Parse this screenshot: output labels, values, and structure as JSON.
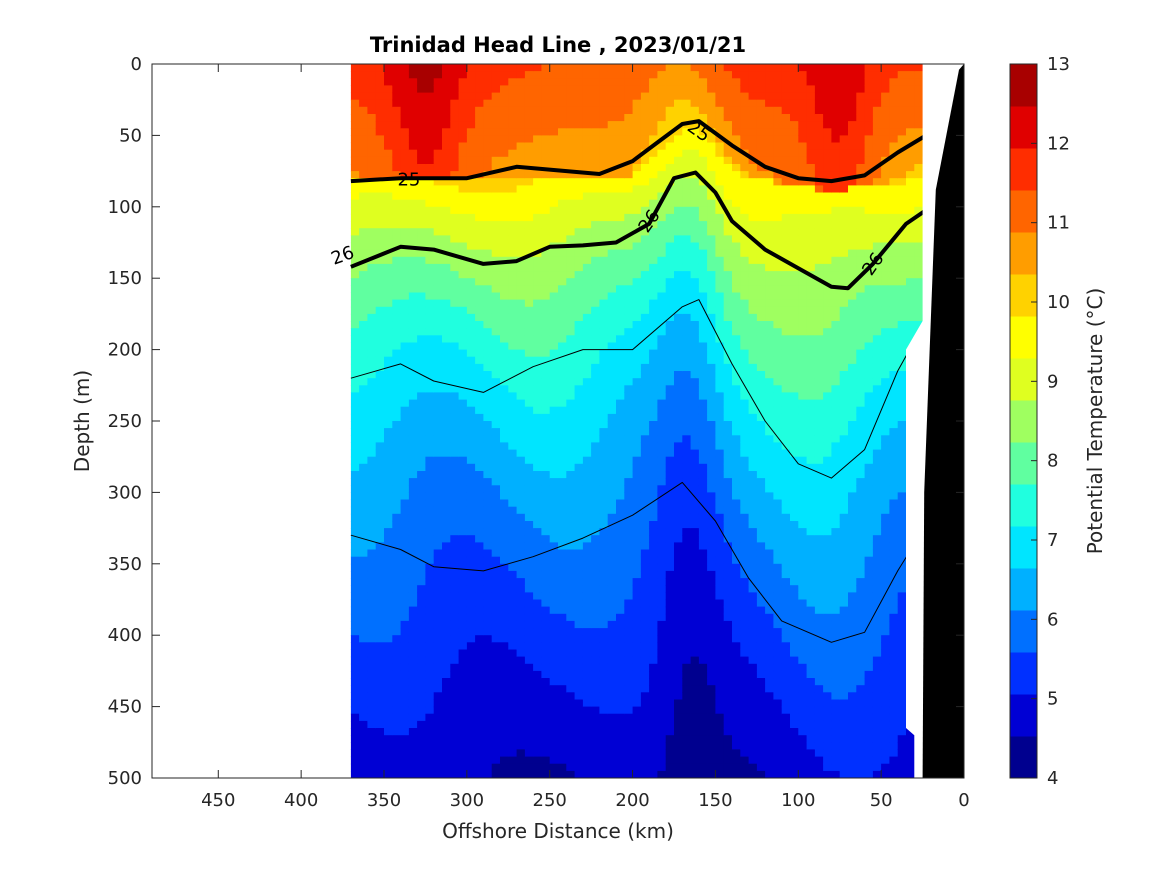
{
  "chart_data": {
    "type": "heatmap",
    "title": "Trinidad Head Line , 2023/01/21",
    "xlabel": "Offshore Distance (km)",
    "ylabel": "Depth (m)",
    "colorbar_label": "Potential Temperature (°C)",
    "xlim": [
      490,
      0
    ],
    "ylim": [
      500,
      0
    ],
    "x_reversed": true,
    "y_reversed": true,
    "x_ticks": [
      450,
      400,
      350,
      300,
      250,
      200,
      150,
      100,
      50,
      0
    ],
    "y_ticks": [
      0,
      50,
      100,
      150,
      200,
      250,
      300,
      350,
      400,
      450,
      500
    ],
    "colorbar_ticks": [
      4,
      5,
      6,
      7,
      8,
      9,
      10,
      11,
      12,
      13
    ],
    "colorbar_range": [
      4,
      13
    ],
    "colormap": [
      "#00008f",
      "#0000d4",
      "#0030ff",
      "#0070ff",
      "#00b0ff",
      "#00e5ff",
      "#20ffdf",
      "#60ffa0",
      "#9fff60",
      "#dfff20",
      "#ffff00",
      "#ffd200",
      "#ff9d00",
      "#ff6500",
      "#ff2d00",
      "#e00000",
      "#a80000"
    ],
    "data_extent_x": [
      370,
      20
    ],
    "isopycnals": [
      {
        "label": "25",
        "emphasized": true,
        "points": [
          [
            370,
            82
          ],
          [
            340,
            80
          ],
          [
            300,
            80
          ],
          [
            270,
            72
          ],
          [
            220,
            77
          ],
          [
            200,
            68
          ],
          [
            185,
            55
          ],
          [
            170,
            42
          ],
          [
            160,
            40
          ],
          [
            140,
            57
          ],
          [
            120,
            72
          ],
          [
            100,
            80
          ],
          [
            80,
            82
          ],
          [
            60,
            78
          ],
          [
            40,
            62
          ],
          [
            20,
            48
          ]
        ]
      },
      {
        "label": "26",
        "emphasized": true,
        "points": [
          [
            370,
            142
          ],
          [
            340,
            128
          ],
          [
            320,
            130
          ],
          [
            290,
            140
          ],
          [
            270,
            138
          ],
          [
            250,
            128
          ],
          [
            230,
            127
          ],
          [
            210,
            125
          ],
          [
            190,
            112
          ],
          [
            175,
            80
          ],
          [
            162,
            76
          ],
          [
            150,
            90
          ],
          [
            140,
            110
          ],
          [
            120,
            130
          ],
          [
            100,
            143
          ],
          [
            80,
            156
          ],
          [
            70,
            157
          ],
          [
            55,
            140
          ],
          [
            35,
            112
          ],
          [
            20,
            100
          ]
        ]
      },
      {
        "label": "",
        "emphasized": false,
        "points": [
          [
            370,
            220
          ],
          [
            340,
            210
          ],
          [
            320,
            222
          ],
          [
            290,
            230
          ],
          [
            260,
            212
          ],
          [
            230,
            200
          ],
          [
            200,
            200
          ],
          [
            170,
            170
          ],
          [
            160,
            165
          ],
          [
            140,
            210
          ],
          [
            120,
            250
          ],
          [
            100,
            280
          ],
          [
            80,
            290
          ],
          [
            60,
            270
          ],
          [
            40,
            215
          ],
          [
            28,
            190
          ]
        ]
      },
      {
        "label": "",
        "emphasized": false,
        "points": [
          [
            370,
            330
          ],
          [
            340,
            340
          ],
          [
            320,
            352
          ],
          [
            290,
            355
          ],
          [
            260,
            345
          ],
          [
            230,
            332
          ],
          [
            200,
            316
          ],
          [
            170,
            293
          ],
          [
            150,
            320
          ],
          [
            130,
            360
          ],
          [
            110,
            390
          ],
          [
            80,
            405
          ],
          [
            60,
            398
          ],
          [
            40,
            355
          ],
          [
            32,
            340
          ],
          [
            28,
            380
          ]
        ]
      }
    ],
    "contour_labels": [
      "25",
      "25",
      "26",
      "26",
      "26"
    ]
  }
}
